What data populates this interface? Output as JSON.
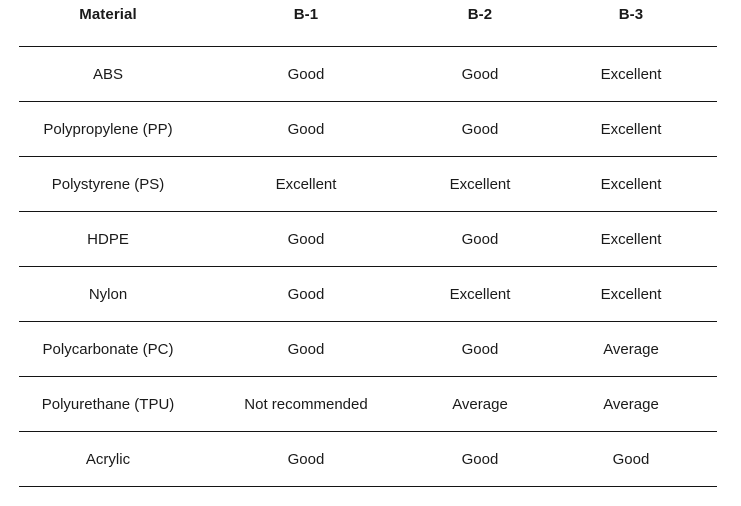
{
  "table": {
    "columns": [
      "Material",
      "B-1",
      "B-2",
      "B-3"
    ],
    "rows": [
      [
        "ABS",
        "Good",
        "Good",
        "Excellent"
      ],
      [
        "Polypropylene (PP)",
        "Good",
        "Good",
        "Excellent"
      ],
      [
        "Polystyrene (PS)",
        "Excellent",
        "Excellent",
        "Excellent"
      ],
      [
        "HDPE",
        "Good",
        "Good",
        "Excellent"
      ],
      [
        "Nylon",
        "Good",
        "Excellent",
        "Excellent"
      ],
      [
        "Polycarbonate (PC)",
        "Good",
        "Good",
        "Average"
      ],
      [
        "Polyurethane (TPU)",
        "Not recommended",
        "Average",
        "Average"
      ],
      [
        "Acrylic",
        "Good",
        "Good",
        "Good"
      ]
    ]
  },
  "colors": {
    "text": "#1a1a1a",
    "rule": "#141414",
    "background": "#ffffff"
  }
}
